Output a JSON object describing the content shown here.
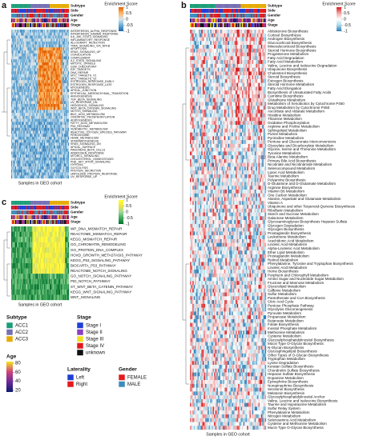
{
  "panels": {
    "a": {
      "label": "a",
      "legend_title": "Enrichment Score",
      "legend_ticks": [
        1,
        0.5,
        0,
        -0.5,
        -1
      ],
      "palette": [
        "#2166ac",
        "#6baed6",
        "#d9e6f0",
        "#fdb863",
        "#e66101"
      ],
      "annotations": [
        "Subtype",
        "Side",
        "Gender",
        "Age",
        "Stage"
      ],
      "x_label": "Samples in GEO cohort",
      "rows": [
        "INTERFERON_ALPHA_RESPONSE",
        "INTERFERON_GAMMA_RESPONSE",
        "IL6_JAK_STAT3_SIGNALING",
        "INFLAMMATORY_RESPONSE",
        "ALLOGRAFT_REJECTION",
        "TNFA_SIGNALING_VIA_NFKB",
        "APOPTOSIS",
        "KRAS_SIGNALING_UP",
        "COAGULATION",
        "COMPLEMENT",
        "IL2_STAT5_SIGNALING",
        "MITOTIC_SPINDLE",
        "G2M_CHECKPOINT",
        "E2F_TARGETS",
        "DNA_REPAIR",
        "MYC_TARGETS_V1",
        "MYC_TARGETS_V2",
        "ESTROGEN_RESPONSE_EARLY",
        "ESTROGEN_RESPONSE_LATE",
        "MYOGENESIS",
        "APICAL_JUNCTION",
        "EPITHELIAL_MESENCHYMAL_TRANSITION",
        "ANGIOGENESIS",
        "TGF_BETA_SIGNALING",
        "UV_RESPONSE_DN",
        "HEDGEHOG_SIGNALING",
        "WNT_BETA_CATENIN_SIGNALING",
        "NOTCH_SIGNALING",
        "BILE_ACID_METABOLISM",
        "OXIDATIVE_PHOSPHORYLATION",
        "ADIPOGENESIS",
        "FATTY_ACID_METABOLISM",
        "P53_PATHWAY",
        "XENOBIOTIC_METABOLISM",
        "REACTIVE_OXYGEN_SPECIES_PATHWAY",
        "PEROXISOME",
        "HEME_METABOLISM",
        "SPERMATOGENESIS",
        "KRAS_SIGNALING_DN",
        "APICAL_SURFACE",
        "PANCREAS_BETA_CELLS",
        "ANDROGEN_RESPONSE",
        "MTORC1_SIGNALING",
        "CHOLESTEROL_HOMEOSTASIS",
        "PI3K_AKT_MTOR_SIGNALING",
        "HYPOXIA",
        "GLYCOLYSIS",
        "PROTEIN_SECRETION",
        "UNFOLDED_PROTEIN_RESPONSE",
        "UV_RESPONSE_UP"
      ]
    },
    "b": {
      "label": "b",
      "legend_title": "Enrichment Score",
      "legend_ticks": [
        1,
        0.5,
        0,
        -0.5,
        -1
      ],
      "palette": [
        "#2c7bb6",
        "#abd9e9",
        "#ffffff",
        "#f4a6a6",
        "#d7191c"
      ],
      "annotations": [
        "Subtype",
        "Side",
        "Gender",
        "Age",
        "Stage"
      ],
      "x_label": "Samples in GEO cohort",
      "rows": [
        "Aldosterone Biosynthesis",
        "Cortisol Biosynthesis",
        "Androgen Biosynthesis",
        "Glucocorticoid Biosynthesis",
        "Mineralocorticoid Biosynthesis",
        "Steroid Hormone Biosynthesis",
        "Progesterone Metabolism",
        "Fatty Acid Degradation",
        "Fatty Acid Metabolism",
        "Valine, Leucine and Isoleucine Degradation",
        "Ubiquinone Biosynthesis",
        "Cholesterol Biosynthesis",
        "Steroid Biosynthesis",
        "Estrogen Biosynthesis",
        "Steroid Hormone Metabolism",
        "Fatty Acid Elongation",
        "Biosynthesis of Unsaturated Fatty Acids",
        "Carnitine Biosynthesis",
        "Glutathione Metabolism",
        "Metabolism of Xenobiotics by Cytochrome P450",
        "Drug Metabolism by Cytochrome P450",
        "Ascorbate and Aldarate Metabolism",
        "Histidine Metabolism",
        "Thiamine Metabolism",
        "Oxidative Phosphorylation",
        "Arginine and Proline Metabolism",
        "Sphingolipid Metabolism",
        "Purine Metabolism",
        "Pyrimidine Metabolism",
        "Pentose and Glucuronate Interconversions",
        "Glyoxylate and Dicarboxylate Metabolism",
        "Glycine, Serine and Threonine Metabolism",
        "Tyrosine Metabolism",
        "Beta-Alanine Metabolism",
        "Primary Bile Acid Biosynthesis",
        "Nicotinate and Nicotinamide Metabolism",
        "Selenocompound Metabolism",
        "Lipoic Acid Metabolism",
        "Taurine Metabolism",
        "Polyamine Biosynthesis",
        "D-Glutamine and D-Glutamate Metabolism",
        "Arginine Biosynthesis",
        "Vitamin B6 Metabolism",
        "One Carbon Metabolism",
        "Alanine, Aspartate and Glutamate Metabolism",
        "Vitamin A",
        "Ubiquinone and other Terpenoid-Quinone Biosynthesis",
        "Riboflavin Metabolism",
        "Starch and Sucrose Metabolism",
        "Galactose Metabolism",
        "Glycosaminoglycan Biosynthesis Heparan Sulfate",
        "Glycogen Degradation",
        "Glycogen Biosynthesis",
        "Prostaglandin Biosynthesis",
        "Leukotriene Metabolism",
        "Arachidonic Acid Metabolism",
        "Linoleic Acid Metabolism",
        "Alpha-Linolenic Acid Metabolism",
        "Ether Lipid Metabolism",
        "Prostaglandin Metabolism",
        "Retinol Metabolism",
        "Phenylalanine, Tyrosine and Tryptophan Biosynthesis",
        "Linoleic Acid Metabolism",
        "Heme Biosynthesis",
        "Porphyrin and Chlorophyll Metabolism",
        "Amino Sugar and Nucleotide Sugar Metabolism",
        "Fructose and Mannose Metabolism",
        "Glycerolipid Metabolism",
        "Caffeine Metabolism",
        "Sulfur Metabolism",
        "Pantothenate and CoA Biosynthesis",
        "Citric Acid Cycle",
        "Pentose Phosphate Pathway",
        "Glycolysis Gluconeogenesis",
        "Pyruvate Metabolism",
        "Propanoate Metabolism",
        "Butanoate Metabolism",
        "Folate Biosynthesis",
        "Inositol Phosphate Metabolism",
        "Methionine Metabolism",
        "Cysteine Metabolism",
        "Glycosylphosphatidylinositol Biosynthesis",
        "Mucin Type O-Glycan Biosynthesis",
        "N-Glycan Biosynthesis",
        "Glycosphingolipid Biosynthesis",
        "Other Types of O-Glycan Biosynthesis",
        "Tryptophan Metabolism",
        "Lysine Degradation",
        "Keratan Sulfate Biosynthesis",
        "Chondroitin Sulfate Biosynthesis",
        "Heparan Sulfate Biosynthesis",
        "Dopamine Metabolism",
        "Epinephrine Biosynthesis",
        "Norepinephrine Biosynthesis",
        "Serotonin Biosynthesis",
        "Melatonin Biosynthesis",
        "Glycosylphosphatidylinositol Anchor",
        "Valine, Leucine and Isoleucine Biosynthesis",
        "Taurine and Hypotaurine Metabolism",
        "Sulfur Relay System",
        "Phenylalanine Metabolism",
        "Nitrogen Metabolism",
        "Selenoamino Acid Metabolism",
        "Cysteine and Methionine Metabolism",
        "Mucin Type O-Glycan Biosynthesis"
      ]
    },
    "c": {
      "label": "c",
      "legend_title": "Enrichment Score",
      "legend_ticks": [
        1,
        0.5,
        0,
        -0.5,
        -1
      ],
      "palette": [
        "#006d2c",
        "#41ab5d",
        "#a1d99b",
        "#f0e442",
        "#ffff33"
      ],
      "annotations": [
        "Subtype",
        "Side",
        "Gender",
        "Age",
        "Stage"
      ],
      "x_label": "Samples in GEO cohort",
      "rows": [
        "WP_DNA_MISMATCH_REPAIR",
        "REACTOME_MISMATCH_REPAIR",
        "KEGG_MISMATCH_REPAIR",
        "GO_CHROMATIN_REMODELING",
        "GO_PROTEIN_DNA_COMPLEX",
        "HOXD_GROWTH_METASTASIS_PATHWAY",
        "KEGG_P53_SIGNALING_PATHWAY",
        "BIOCARTA_P53_PATHWAY",
        "REACTOME_NOTCH_SIGNALING",
        "GO_NOTCH_SIGNALING_PATHWAY",
        "PID_NOTCH_PATHWAY",
        "ST_WNT_BETA_CATENIN_PATHWAY",
        "KEGG_WNT_SIGNALING_PATHWAY",
        "WNT_SIGNALING"
      ]
    }
  },
  "legends": {
    "subtype": {
      "title": "Subtype",
      "items": [
        {
          "label": "ACC1",
          "color": "#1b9e77"
        },
        {
          "label": "ACC2",
          "color": "#7570b3"
        },
        {
          "label": "ACC3",
          "color": "#e6ab02"
        }
      ]
    },
    "stage": {
      "title": "Stage",
      "items": [
        {
          "label": "Stage I",
          "color": "#1f3fd6"
        },
        {
          "label": "Stage II",
          "color": "#8a3fc4"
        },
        {
          "label": "Stage III",
          "color": "#f0e020"
        },
        {
          "label": "Stage IV",
          "color": "#e31a1c"
        },
        {
          "label": "unknown",
          "color": "#111111"
        }
      ]
    },
    "age": {
      "title": "Age",
      "ticks": [
        80,
        60,
        40,
        20
      ],
      "palette": [
        "#f5e51c",
        "#d0447a",
        "#6a2a9a",
        "#0d1a6e"
      ]
    },
    "laterality": {
      "title": "Laterality",
      "items": [
        {
          "label": "Left",
          "color": "#1f3fd6"
        },
        {
          "label": "Right",
          "color": "#e31a1c"
        }
      ]
    },
    "gender": {
      "title": "Gender",
      "items": [
        {
          "label": "FEMALE",
          "color": "#e31a1c"
        },
        {
          "label": "MALE",
          "color": "#3c8dbc"
        }
      ]
    }
  }
}
